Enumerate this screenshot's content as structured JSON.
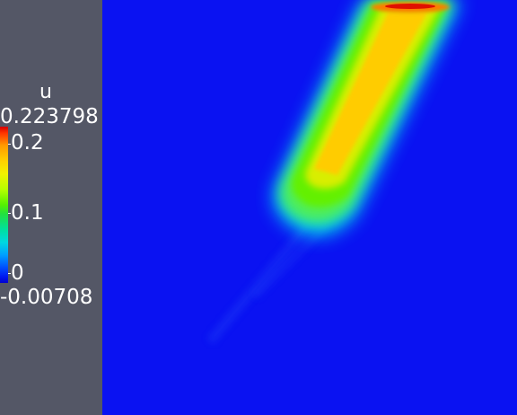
{
  "legend": {
    "title": "u",
    "max_label": "0.223798",
    "min_label": "-0.00708",
    "ticks": [
      "0.2",
      "0.1",
      "0"
    ],
    "range": [
      -0.00708,
      0.223798
    ]
  },
  "colors": {
    "panel_background": "#545766",
    "field_background": "#0a12f2",
    "colormap": [
      "#0000d0",
      "#00a0ff",
      "#00d8e0",
      "#55f000",
      "#f2f200",
      "#ffd100",
      "#ff3300",
      "#d40000"
    ]
  }
}
